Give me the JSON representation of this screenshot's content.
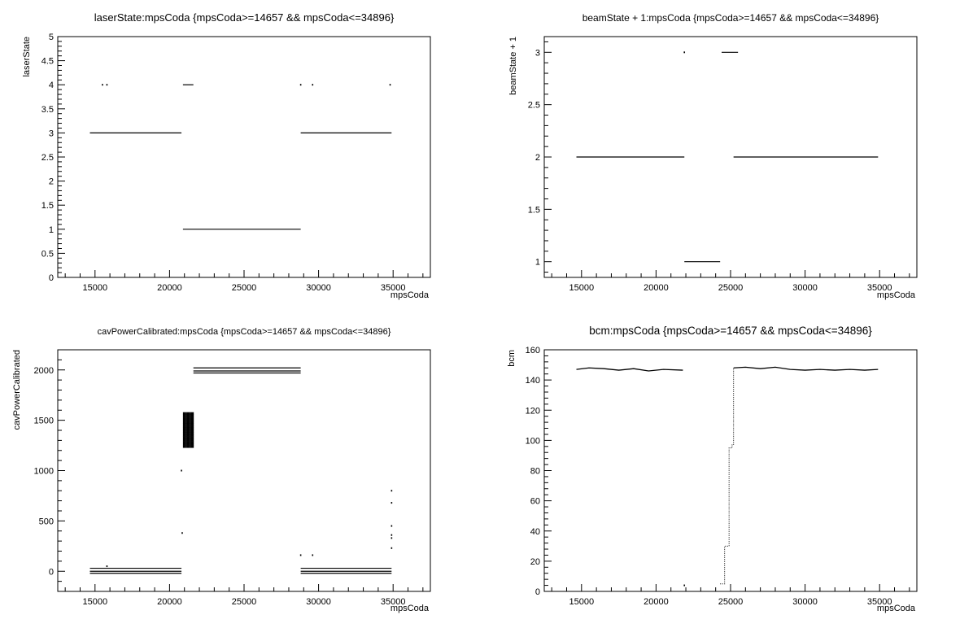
{
  "chart_data": [
    {
      "type": "scatter",
      "title": "laserState:mpsCoda {mpsCoda>=14657 && mpsCoda<=34896}",
      "xlabel": "mpsCoda",
      "ylabel": "laserState",
      "xlim": [
        12500,
        37500
      ],
      "ylim": [
        0,
        5
      ],
      "xticks": [
        15000,
        20000,
        25000,
        30000,
        35000
      ],
      "yticks": [
        0,
        0.5,
        1,
        1.5,
        2,
        2.5,
        3,
        3.5,
        4,
        4.5,
        5
      ],
      "ytick_labels": [
        "0",
        "0.5",
        "1",
        "1.5",
        "2",
        "2.5",
        "3",
        "3.5",
        "4",
        "4.5",
        "5"
      ],
      "segments": [
        {
          "x0": 14657,
          "x1": 20800,
          "y": 3
        },
        {
          "x0": 20900,
          "x1": 21600,
          "y": 4
        },
        {
          "x0": 20900,
          "x1": 28800,
          "y": 1
        },
        {
          "x0": 28800,
          "x1": 34896,
          "y": 3
        }
      ],
      "points": [
        {
          "x": 15500,
          "y": 4
        },
        {
          "x": 15800,
          "y": 4
        },
        {
          "x": 28800,
          "y": 4
        },
        {
          "x": 29600,
          "y": 4
        },
        {
          "x": 34800,
          "y": 4
        }
      ]
    },
    {
      "type": "scatter",
      "title": "beamState + 1:mpsCoda {mpsCoda>=14657 && mpsCoda<=34896}",
      "xlabel": "mpsCoda",
      "ylabel": "beamState + 1",
      "xlim": [
        12500,
        37500
      ],
      "ylim": [
        0.85,
        3.15
      ],
      "xticks": [
        15000,
        20000,
        25000,
        30000,
        35000
      ],
      "yticks": [
        1,
        1.5,
        2,
        2.5,
        3
      ],
      "ytick_labels": [
        "1",
        "1.5",
        "2",
        "2.5",
        "3"
      ],
      "segments": [
        {
          "x0": 14657,
          "x1": 21900,
          "y": 2
        },
        {
          "x0": 21900,
          "x1": 24300,
          "y": 1
        },
        {
          "x0": 24400,
          "x1": 25500,
          "y": 3
        },
        {
          "x0": 25200,
          "x1": 34896,
          "y": 2
        }
      ],
      "points": [
        {
          "x": 21900,
          "y": 3
        }
      ]
    },
    {
      "type": "scatter",
      "title": "cavPowerCalibrated:mpsCoda {mpsCoda>=14657 && mpsCoda<=34896}",
      "xlabel": "mpsCoda",
      "ylabel": "cavPowerCalibrated",
      "xlim": [
        12500,
        37500
      ],
      "ylim": [
        -200,
        2200
      ],
      "xticks": [
        15000,
        20000,
        25000,
        30000,
        35000
      ],
      "yticks": [
        0,
        500,
        1000,
        1500,
        2000
      ],
      "ytick_labels": [
        "0",
        "500",
        "1000",
        "1500",
        "2000"
      ],
      "segments": [
        {
          "x0": 14657,
          "x1": 20800,
          "y": 30
        },
        {
          "x0": 14657,
          "x1": 20800,
          "y": 0
        },
        {
          "x0": 14657,
          "x1": 20800,
          "y": -20
        },
        {
          "x0": 21600,
          "x1": 28800,
          "y": 2020
        },
        {
          "x0": 21600,
          "x1": 28800,
          "y": 1990
        },
        {
          "x0": 21600,
          "x1": 28800,
          "y": 1970
        },
        {
          "x0": 28800,
          "x1": 34896,
          "y": 30
        },
        {
          "x0": 28800,
          "x1": 34896,
          "y": 0
        },
        {
          "x0": 28800,
          "x1": 34896,
          "y": -20
        }
      ],
      "clusters": [
        {
          "x0": 20900,
          "x1": 21600,
          "y0": 1250,
          "y1": 1600
        }
      ],
      "points": [
        {
          "x": 20800,
          "y": 1000
        },
        {
          "x": 20850,
          "y": 380
        },
        {
          "x": 15800,
          "y": 50
        },
        {
          "x": 28800,
          "y": 160
        },
        {
          "x": 29600,
          "y": 160
        },
        {
          "x": 34900,
          "y": 800
        },
        {
          "x": 34900,
          "y": 680
        },
        {
          "x": 34900,
          "y": 450
        },
        {
          "x": 34900,
          "y": 360
        },
        {
          "x": 34900,
          "y": 330
        },
        {
          "x": 34900,
          "y": 230
        }
      ]
    },
    {
      "type": "scatter",
      "title": "bcm:mpsCoda {mpsCoda>=14657 && mpsCoda<=34896}",
      "xlabel": "mpsCoda",
      "ylabel": "bcm",
      "xlim": [
        12500,
        37500
      ],
      "ylim": [
        0,
        160
      ],
      "xticks": [
        15000,
        20000,
        25000,
        30000,
        35000
      ],
      "yticks": [
        0,
        20,
        40,
        60,
        80,
        100,
        120,
        140,
        160
      ],
      "ytick_labels": [
        "0",
        "20",
        "40",
        "60",
        "80",
        "100",
        "120",
        "140",
        "160"
      ],
      "curves": [
        {
          "x": [
            14657,
            15500,
            16500,
            17500,
            18500,
            19500,
            20500,
            21800
          ],
          "y": [
            147,
            148,
            147.5,
            146.5,
            147.5,
            146,
            147,
            146.5
          ]
        },
        {
          "x": [
            25200,
            26000,
            27000,
            28000,
            29000,
            30000,
            31000,
            32000,
            33000,
            34000,
            34896
          ],
          "y": [
            148,
            148.5,
            147.5,
            148.5,
            147,
            146.5,
            147,
            146.5,
            147,
            146.5,
            147
          ]
        }
      ],
      "step": {
        "x": [
          24300,
          24600,
          24600,
          24900,
          24900,
          25100,
          25100,
          25200,
          25200
        ],
        "y": [
          5,
          5,
          30,
          30,
          95,
          95,
          97,
          97,
          148
        ]
      },
      "points": [
        {
          "x": 21900,
          "y": 4
        }
      ]
    }
  ]
}
